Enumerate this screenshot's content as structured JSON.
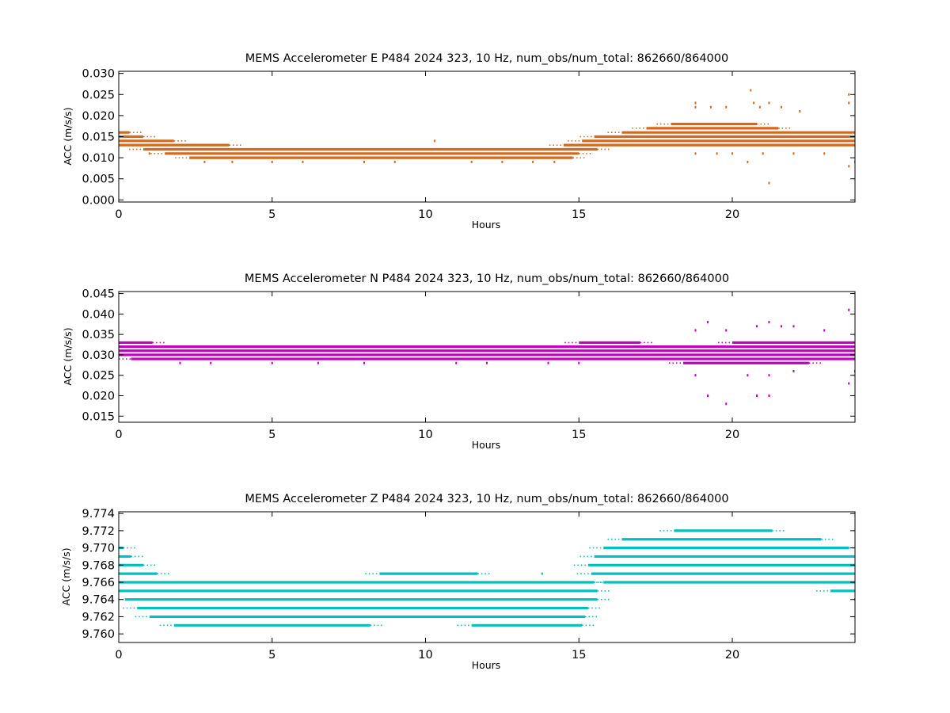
{
  "chart_data": [
    {
      "type": "scatter",
      "title": "MEMS Accelerometer E P484 2024 323, 10 Hz, num_obs/num_total: 862660/864000",
      "xlabel": "Hours",
      "ylabel": "ACC (m/s/s)",
      "xlim": [
        0,
        24
      ],
      "ylim": [
        -0.0005,
        0.0305
      ],
      "xticks": [
        0,
        5,
        10,
        15,
        20
      ],
      "xtick_labels": [
        "0",
        "5",
        "10",
        "15",
        "20"
      ],
      "yticks": [
        0.0,
        0.005,
        0.01,
        0.015,
        0.02,
        0.025,
        0.03
      ],
      "ytick_labels": [
        "0.000",
        "0.005",
        "0.010",
        "0.015",
        "0.020",
        "0.025",
        "0.030"
      ],
      "color": "#d2691e",
      "grid": false,
      "bands": [
        {
          "y": 0.016,
          "x": [
            0.0,
            0.35
          ]
        },
        {
          "y": 0.015,
          "x": [
            0.0,
            0.8
          ]
        },
        {
          "y": 0.014,
          "x": [
            0.0,
            1.8
          ]
        },
        {
          "y": 0.013,
          "x": [
            0.0,
            3.6
          ]
        },
        {
          "y": 0.013,
          "x": [
            14.5,
            24.0
          ]
        },
        {
          "y": 0.012,
          "x": [
            0.8,
            15.6
          ]
        },
        {
          "y": 0.011,
          "x": [
            1.5,
            15.0
          ]
        },
        {
          "y": 0.01,
          "x": [
            2.3,
            14.8
          ]
        },
        {
          "y": 0.014,
          "x": [
            15.1,
            24.0
          ]
        },
        {
          "y": 0.015,
          "x": [
            15.5,
            24.0
          ]
        },
        {
          "y": 0.016,
          "x": [
            16.4,
            24.0
          ]
        },
        {
          "y": 0.017,
          "x": [
            17.2,
            21.5
          ]
        },
        {
          "y": 0.018,
          "x": [
            18.0,
            20.8
          ]
        }
      ],
      "outliers": [
        [
          1.0,
          0.011
        ],
        [
          2.8,
          0.009
        ],
        [
          3.7,
          0.009
        ],
        [
          5.0,
          0.009
        ],
        [
          6.0,
          0.009
        ],
        [
          8.0,
          0.009
        ],
        [
          9.0,
          0.009
        ],
        [
          10.3,
          0.014
        ],
        [
          11.5,
          0.009
        ],
        [
          12.5,
          0.009
        ],
        [
          13.5,
          0.009
        ],
        [
          14.2,
          0.009
        ],
        [
          18.8,
          0.023
        ],
        [
          18.8,
          0.022
        ],
        [
          19.3,
          0.022
        ],
        [
          19.8,
          0.022
        ],
        [
          20.6,
          0.026
        ],
        [
          20.7,
          0.023
        ],
        [
          20.9,
          0.022
        ],
        [
          21.2,
          0.023
        ],
        [
          21.6,
          0.022
        ],
        [
          22.2,
          0.021
        ],
        [
          23.8,
          0.025
        ],
        [
          23.8,
          0.023
        ],
        [
          18.8,
          0.011
        ],
        [
          19.5,
          0.011
        ],
        [
          20.0,
          0.011
        ],
        [
          20.5,
          0.009
        ],
        [
          21.0,
          0.011
        ],
        [
          21.2,
          0.004
        ],
        [
          22.0,
          0.011
        ],
        [
          23.0,
          0.011
        ],
        [
          23.8,
          0.008
        ],
        [
          24.0,
          0.009
        ]
      ]
    },
    {
      "type": "scatter",
      "title": "MEMS Accelerometer N P484 2024 323, 10 Hz, num_obs/num_total: 862660/864000",
      "xlabel": "Hours",
      "ylabel": "ACC (m/s/s)",
      "xlim": [
        0,
        24
      ],
      "ylim": [
        0.0135,
        0.0455
      ],
      "xticks": [
        0,
        5,
        10,
        15,
        20
      ],
      "xtick_labels": [
        "0",
        "5",
        "10",
        "15",
        "20"
      ],
      "yticks": [
        0.015,
        0.02,
        0.025,
        0.03,
        0.035,
        0.04,
        0.045
      ],
      "ytick_labels": [
        "0.015",
        "0.020",
        "0.025",
        "0.030",
        "0.035",
        "0.040",
        "0.045"
      ],
      "color": "#bf00bf",
      "grid": false,
      "bands": [
        {
          "y": 0.033,
          "x": [
            0.0,
            1.1
          ]
        },
        {
          "y": 0.032,
          "x": [
            0.0,
            24.0
          ]
        },
        {
          "y": 0.031,
          "x": [
            0.0,
            24.0
          ]
        },
        {
          "y": 0.03,
          "x": [
            0.0,
            24.0
          ]
        },
        {
          "y": 0.029,
          "x": [
            0.4,
            24.0
          ]
        },
        {
          "y": 0.028,
          "x": [
            18.4,
            22.5
          ]
        },
        {
          "y": 0.033,
          "x": [
            15.0,
            17.0
          ]
        },
        {
          "y": 0.033,
          "x": [
            20.0,
            24.0
          ]
        }
      ],
      "outliers": [
        [
          2.0,
          0.028
        ],
        [
          3.0,
          0.028
        ],
        [
          5.0,
          0.028
        ],
        [
          6.5,
          0.028
        ],
        [
          8.0,
          0.028
        ],
        [
          11.0,
          0.028
        ],
        [
          12.0,
          0.028
        ],
        [
          14.0,
          0.028
        ],
        [
          15.0,
          0.028
        ],
        [
          18.8,
          0.036
        ],
        [
          19.2,
          0.038
        ],
        [
          19.8,
          0.036
        ],
        [
          20.8,
          0.037
        ],
        [
          21.2,
          0.038
        ],
        [
          21.6,
          0.037
        ],
        [
          22.0,
          0.037
        ],
        [
          23.0,
          0.036
        ],
        [
          23.8,
          0.041
        ],
        [
          18.8,
          0.025
        ],
        [
          19.2,
          0.02
        ],
        [
          19.8,
          0.018
        ],
        [
          20.5,
          0.025
        ],
        [
          20.8,
          0.02
        ],
        [
          21.2,
          0.025
        ],
        [
          21.2,
          0.02
        ],
        [
          22.0,
          0.026
        ],
        [
          23.8,
          0.023
        ],
        [
          24.0,
          0.026
        ]
      ]
    },
    {
      "type": "scatter",
      "title": "MEMS Accelerometer Z P484 2024 323, 10 Hz, num_obs/num_total: 862660/864000",
      "xlabel": "Hours",
      "ylabel": "ACC (m/s/s)",
      "xlim": [
        0,
        24
      ],
      "ylim": [
        9.759,
        9.7742
      ],
      "xticks": [
        0,
        5,
        10,
        15,
        20
      ],
      "xtick_labels": [
        "0",
        "5",
        "10",
        "15",
        "20"
      ],
      "yticks": [
        9.76,
        9.762,
        9.764,
        9.766,
        9.768,
        9.77,
        9.772,
        9.774
      ],
      "ytick_labels": [
        "9.760",
        "9.762",
        "9.764",
        "9.766",
        "9.768",
        "9.770",
        "9.772",
        "9.774"
      ],
      "color": "#00bfbf",
      "grid": false,
      "bands": [
        {
          "y": 9.77,
          "x": [
            0.0,
            0.15
          ]
        },
        {
          "y": 9.769,
          "x": [
            0.0,
            0.4
          ]
        },
        {
          "y": 9.768,
          "x": [
            0.0,
            0.8
          ]
        },
        {
          "y": 9.767,
          "x": [
            0.0,
            1.25
          ]
        },
        {
          "y": 9.766,
          "x": [
            0.0,
            15.5
          ]
        },
        {
          "y": 9.765,
          "x": [
            0.0,
            15.6
          ]
        },
        {
          "y": 9.764,
          "x": [
            0.2,
            15.6
          ]
        },
        {
          "y": 9.763,
          "x": [
            0.6,
            15.3
          ]
        },
        {
          "y": 9.762,
          "x": [
            1.0,
            15.2
          ]
        },
        {
          "y": 9.761,
          "x": [
            1.8,
            8.2
          ]
        },
        {
          "y": 9.761,
          "x": [
            11.5,
            15.1
          ]
        },
        {
          "y": 9.767,
          "x": [
            8.5,
            11.7
          ]
        },
        {
          "y": 9.767,
          "x": [
            15.4,
            24.0
          ]
        },
        {
          "y": 9.766,
          "x": [
            15.8,
            24.0
          ]
        },
        {
          "y": 9.768,
          "x": [
            15.3,
            24.0
          ]
        },
        {
          "y": 9.769,
          "x": [
            15.5,
            24.0
          ]
        },
        {
          "y": 9.77,
          "x": [
            15.8,
            23.8
          ]
        },
        {
          "y": 9.771,
          "x": [
            16.4,
            22.9
          ]
        },
        {
          "y": 9.772,
          "x": [
            18.1,
            21.3
          ]
        },
        {
          "y": 9.765,
          "x": [
            23.2,
            24.0
          ]
        }
      ],
      "outliers": [
        [
          13.8,
          9.767
        ],
        [
          24.0,
          9.764
        ]
      ]
    }
  ]
}
